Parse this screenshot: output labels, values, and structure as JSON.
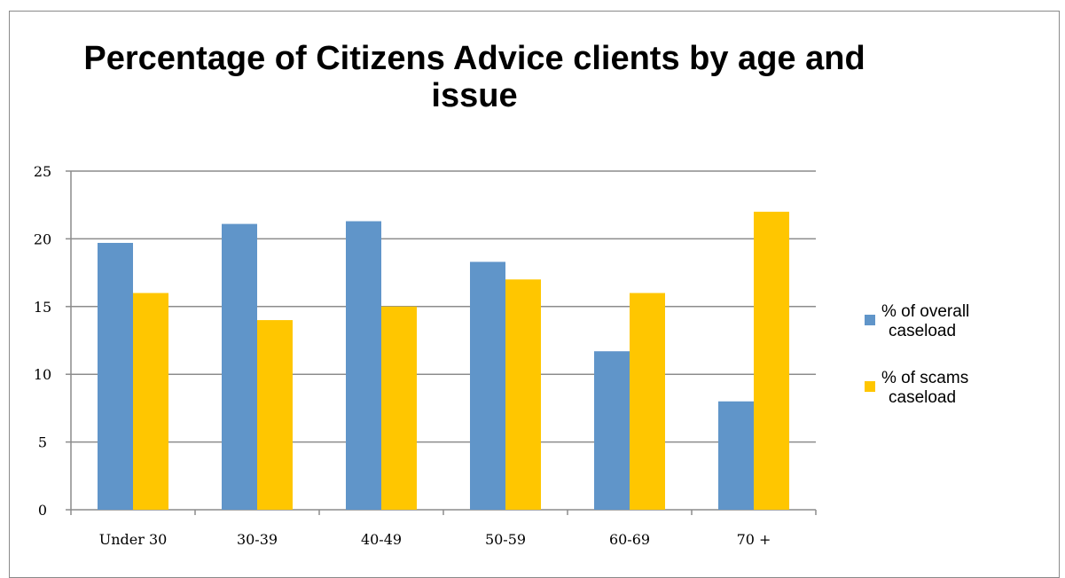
{
  "chart_data": {
    "type": "bar",
    "title": "Percentage of Citizens Advice clients by age and issue",
    "xlabel": "",
    "ylabel": "",
    "categories": [
      "Under 30",
      "30-39",
      "40-49",
      "50-59",
      "60-69",
      "70 +"
    ],
    "series": [
      {
        "name": "% of overall caseload",
        "color": "#6095c9",
        "values": [
          19.7,
          21.1,
          21.3,
          18.3,
          11.7,
          8.0
        ]
      },
      {
        "name": "% of scams caseload",
        "color": "#ffc600",
        "values": [
          16,
          14,
          15,
          17,
          16,
          22
        ]
      }
    ],
    "ylim": [
      0,
      25
    ],
    "yticks": [
      0,
      5,
      10,
      15,
      20,
      25
    ],
    "grid": true,
    "legend_position": "right"
  }
}
